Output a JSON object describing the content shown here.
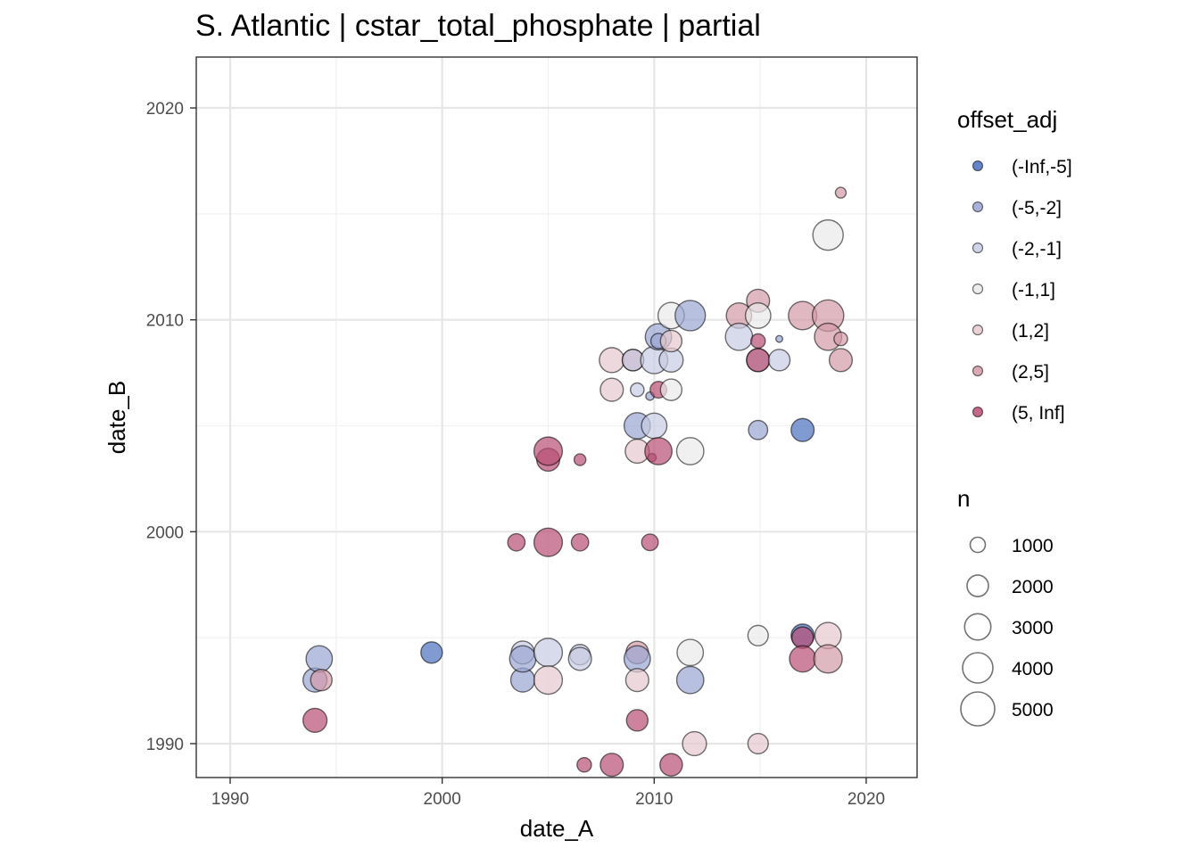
{
  "chart_data": {
    "type": "scatter",
    "title": "S. Atlantic | cstar_total_phosphate | partial",
    "xlabel": "date_A",
    "ylabel": "date_B",
    "xlim": [
      1988.4,
      2022.4
    ],
    "ylim": [
      1988.4,
      2022.4
    ],
    "x_ticks": [
      1990,
      2000,
      2010,
      2020
    ],
    "y_ticks": [
      1990,
      2000,
      2010,
      2020
    ],
    "x_tick_labels": [
      "1990",
      "2000",
      "2010",
      "2020"
    ],
    "y_tick_labels": [
      "1990",
      "2000",
      "2010",
      "2020"
    ],
    "grid": true,
    "legend_position": "right",
    "legend_color": {
      "title": "offset_adj",
      "entries": [
        {
          "label": "(-Inf,-5]",
          "color": "#4a6fbf"
        },
        {
          "label": "(-5,-2]",
          "color": "#9aa5d2"
        },
        {
          "label": "(-2,-1]",
          "color": "#c7cce3"
        },
        {
          "label": "(-1,1]",
          "color": "#e9e9e9"
        },
        {
          "label": "(1,2]",
          "color": "#e6c9cf"
        },
        {
          "label": "(2,5]",
          "color": "#d39aa8"
        },
        {
          "label": "(5, Inf]",
          "color": "#b84e74"
        }
      ]
    },
    "legend_size": {
      "title": "n",
      "entries": [
        {
          "label": "1000",
          "value": 1000
        },
        {
          "label": "2000",
          "value": 2000
        },
        {
          "label": "3000",
          "value": 3000
        },
        {
          "label": "4000",
          "value": 4000
        },
        {
          "label": "5000",
          "value": 5000
        }
      ]
    },
    "points": [
      {
        "x": 1994.0,
        "y": 1991.1,
        "n": 2500,
        "offset_adj": "(5, Inf]"
      },
      {
        "x": 1994.0,
        "y": 1993.0,
        "n": 2500,
        "offset_adj": "(-5,-2]"
      },
      {
        "x": 1994.2,
        "y": 1994.0,
        "n": 3000,
        "offset_adj": "(-5,-2]"
      },
      {
        "x": 1994.3,
        "y": 1993.0,
        "n": 2000,
        "offset_adj": "(2,5]"
      },
      {
        "x": 1999.5,
        "y": 1994.3,
        "n": 2000,
        "offset_adj": "(-Inf,-5]"
      },
      {
        "x": 2003.5,
        "y": 1999.5,
        "n": 1300,
        "offset_adj": "(5, Inf]"
      },
      {
        "x": 2003.8,
        "y": 1994.3,
        "n": 2300,
        "offset_adj": "(-2,-1]"
      },
      {
        "x": 2003.8,
        "y": 1993.0,
        "n": 2500,
        "offset_adj": "(-5,-2]"
      },
      {
        "x": 2003.8,
        "y": 1994.0,
        "n": 3000,
        "offset_adj": "(-5,-2]"
      },
      {
        "x": 2005.0,
        "y": 2003.4,
        "n": 2300,
        "offset_adj": "(5, Inf]"
      },
      {
        "x": 2005.0,
        "y": 2003.8,
        "n": 3500,
        "offset_adj": "(5, Inf]"
      },
      {
        "x": 2005.0,
        "y": 1999.5,
        "n": 3500,
        "offset_adj": "(5, Inf]"
      },
      {
        "x": 2005.0,
        "y": 1994.3,
        "n": 3500,
        "offset_adj": "(-2,-1]"
      },
      {
        "x": 2005.0,
        "y": 1993.0,
        "n": 3500,
        "offset_adj": "(1,2]"
      },
      {
        "x": 2006.5,
        "y": 2003.4,
        "n": 600,
        "offset_adj": "(5, Inf]"
      },
      {
        "x": 2006.5,
        "y": 1999.5,
        "n": 1300,
        "offset_adj": "(5, Inf]"
      },
      {
        "x": 2006.5,
        "y": 1994.2,
        "n": 1800,
        "offset_adj": "(-2,-1]"
      },
      {
        "x": 2006.5,
        "y": 1994.0,
        "n": 2300,
        "offset_adj": "(-2,-1]"
      },
      {
        "x": 2006.7,
        "y": 1989.0,
        "n": 900,
        "offset_adj": "(5, Inf]"
      },
      {
        "x": 2008.0,
        "y": 2008.1,
        "n": 2700,
        "offset_adj": "(1,2]"
      },
      {
        "x": 2008.0,
        "y": 2006.7,
        "n": 2300,
        "offset_adj": "(1,2]"
      },
      {
        "x": 2008.0,
        "y": 1989.0,
        "n": 2300,
        "offset_adj": "(5, Inf]"
      },
      {
        "x": 2009.0,
        "y": 2008.1,
        "n": 2000,
        "offset_adj": "(2,5]"
      },
      {
        "x": 2009.0,
        "y": 2008.1,
        "n": 2000,
        "offset_adj": "(-2,-1]"
      },
      {
        "x": 2009.2,
        "y": 2006.7,
        "n": 800,
        "offset_adj": "(-2,-1]"
      },
      {
        "x": 2009.2,
        "y": 2005.0,
        "n": 3000,
        "offset_adj": "(-5,-2]"
      },
      {
        "x": 2009.2,
        "y": 2003.8,
        "n": 2500,
        "offset_adj": "(1,2]"
      },
      {
        "x": 2009.2,
        "y": 1994.3,
        "n": 2200,
        "offset_adj": "(2,5]"
      },
      {
        "x": 2009.2,
        "y": 1994.0,
        "n": 3000,
        "offset_adj": "(-5,-2]"
      },
      {
        "x": 2009.2,
        "y": 1993.0,
        "n": 2300,
        "offset_adj": "(1,2]"
      },
      {
        "x": 2009.2,
        "y": 1991.1,
        "n": 2000,
        "offset_adj": "(5, Inf]"
      },
      {
        "x": 2009.8,
        "y": 2006.4,
        "n": 300,
        "offset_adj": "(-5,-2]"
      },
      {
        "x": 2009.8,
        "y": 1999.5,
        "n": 1200,
        "offset_adj": "(5, Inf]"
      },
      {
        "x": 2009.9,
        "y": 2003.5,
        "n": 300,
        "offset_adj": "(5, Inf]"
      },
      {
        "x": 2010.0,
        "y": 2008.1,
        "n": 3200,
        "offset_adj": "(-2,-1]"
      },
      {
        "x": 2010.0,
        "y": 2005.0,
        "n": 2800,
        "offset_adj": "(-2,-1]"
      },
      {
        "x": 2010.2,
        "y": 2009.2,
        "n": 3000,
        "offset_adj": "(-5,-2]"
      },
      {
        "x": 2010.2,
        "y": 2009.0,
        "n": 1000,
        "offset_adj": "(-5,-2]"
      },
      {
        "x": 2010.2,
        "y": 2006.7,
        "n": 1200,
        "offset_adj": "(5, Inf]"
      },
      {
        "x": 2010.2,
        "y": 2003.8,
        "n": 3200,
        "offset_adj": "(5, Inf]"
      },
      {
        "x": 2010.8,
        "y": 2008.1,
        "n": 2500,
        "offset_adj": "(-2,-1]"
      },
      {
        "x": 2010.8,
        "y": 2006.7,
        "n": 2000,
        "offset_adj": "(-1,1]"
      },
      {
        "x": 2010.8,
        "y": 2009.0,
        "n": 2000,
        "offset_adj": "(1,2]"
      },
      {
        "x": 2010.8,
        "y": 1989.0,
        "n": 2200,
        "offset_adj": "(5, Inf]"
      },
      {
        "x": 2010.8,
        "y": 2010.2,
        "n": 3000,
        "offset_adj": "(-1,1]"
      },
      {
        "x": 2011.7,
        "y": 2010.2,
        "n": 4000,
        "offset_adj": "(-5,-2]"
      },
      {
        "x": 2011.7,
        "y": 2003.8,
        "n": 3200,
        "offset_adj": "(-1,1]"
      },
      {
        "x": 2011.7,
        "y": 1994.3,
        "n": 3000,
        "offset_adj": "(-1,1]"
      },
      {
        "x": 2011.7,
        "y": 1993.0,
        "n": 3200,
        "offset_adj": "(-5,-2]"
      },
      {
        "x": 2011.9,
        "y": 1990.0,
        "n": 2500,
        "offset_adj": "(1,2]"
      },
      {
        "x": 2014.0,
        "y": 2010.2,
        "n": 2800,
        "offset_adj": "(2,5]"
      },
      {
        "x": 2014.0,
        "y": 2009.2,
        "n": 3200,
        "offset_adj": "(-2,-1]"
      },
      {
        "x": 2014.9,
        "y": 2010.9,
        "n": 2300,
        "offset_adj": "(2,5]"
      },
      {
        "x": 2014.9,
        "y": 2010.2,
        "n": 2800,
        "offset_adj": "(-1,1]"
      },
      {
        "x": 2014.9,
        "y": 2009.0,
        "n": 900,
        "offset_adj": "(5, Inf]"
      },
      {
        "x": 2014.9,
        "y": 2008.1,
        "n": 2300,
        "offset_adj": "(-2,-1]"
      },
      {
        "x": 2014.9,
        "y": 2008.1,
        "n": 2300,
        "offset_adj": "(5, Inf]"
      },
      {
        "x": 2014.9,
        "y": 2004.8,
        "n": 1600,
        "offset_adj": "(-5,-2]"
      },
      {
        "x": 2014.9,
        "y": 1995.1,
        "n": 1800,
        "offset_adj": "(-1,1]"
      },
      {
        "x": 2014.9,
        "y": 1990.0,
        "n": 1800,
        "offset_adj": "(1,2]"
      },
      {
        "x": 2015.9,
        "y": 2009.1,
        "n": 200,
        "offset_adj": "(-5,-2]"
      },
      {
        "x": 2015.9,
        "y": 2008.1,
        "n": 2000,
        "offset_adj": "(-2,-1]"
      },
      {
        "x": 2017.0,
        "y": 2010.2,
        "n": 3500,
        "offset_adj": "(2,5]"
      },
      {
        "x": 2017.0,
        "y": 2004.8,
        "n": 2300,
        "offset_adj": "(-Inf,-5]"
      },
      {
        "x": 2017.0,
        "y": 1995.1,
        "n": 2300,
        "offset_adj": "(-Inf,-5]"
      },
      {
        "x": 2017.0,
        "y": 1995.0,
        "n": 2000,
        "offset_adj": "(5, Inf]"
      },
      {
        "x": 2017.0,
        "y": 1994.0,
        "n": 3000,
        "offset_adj": "(5, Inf]"
      },
      {
        "x": 2018.2,
        "y": 2014.0,
        "n": 4000,
        "offset_adj": "(-1,1]"
      },
      {
        "x": 2018.2,
        "y": 2010.2,
        "n": 4300,
        "offset_adj": "(2,5]"
      },
      {
        "x": 2018.2,
        "y": 2009.2,
        "n": 3200,
        "offset_adj": "(2,5]"
      },
      {
        "x": 2018.2,
        "y": 1995.1,
        "n": 3000,
        "offset_adj": "(1,2]"
      },
      {
        "x": 2018.2,
        "y": 1994.0,
        "n": 3500,
        "offset_adj": "(2,5]"
      },
      {
        "x": 2018.8,
        "y": 2016.0,
        "n": 500,
        "offset_adj": "(2,5]"
      },
      {
        "x": 2018.8,
        "y": 2009.1,
        "n": 800,
        "offset_adj": "(2,5]"
      },
      {
        "x": 2018.8,
        "y": 2008.1,
        "n": 2300,
        "offset_adj": "(2,5]"
      }
    ]
  }
}
